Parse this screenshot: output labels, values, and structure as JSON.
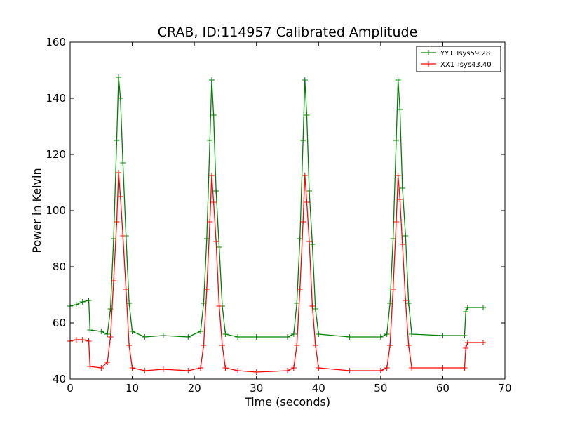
{
  "chart_data": {
    "type": "line",
    "title": "CRAB, ID:114957 Calibrated Amplitude",
    "xlabel": "Time (seconds)",
    "ylabel": "Power in Kelvin",
    "xlim": [
      0,
      70
    ],
    "ylim": [
      40,
      160
    ],
    "xticks": [
      0,
      10,
      20,
      30,
      40,
      50,
      60,
      70
    ],
    "yticks": [
      40,
      60,
      80,
      100,
      120,
      140,
      160
    ],
    "grid": false,
    "legend_position": "top-right",
    "series": [
      {
        "name": "YY1 Tsys59.28",
        "color": "#008000",
        "x": [
          0,
          1,
          2,
          3,
          3.2,
          5,
          6,
          6.5,
          7,
          7.5,
          7.8,
          8.1,
          8.5,
          9,
          9.5,
          10,
          12,
          15,
          19,
          21,
          21.5,
          22,
          22.5,
          22.8,
          23.1,
          23.5,
          24,
          24.5,
          25,
          27,
          30,
          35,
          36,
          36.5,
          37,
          37.5,
          37.8,
          38.1,
          38.5,
          39,
          39.5,
          40,
          45,
          50,
          51,
          51.5,
          52,
          52.5,
          52.8,
          53.1,
          53.5,
          54,
          54.5,
          55,
          60,
          63.5,
          63.7,
          64,
          66.5
        ],
        "y": [
          66,
          66.5,
          67.5,
          68,
          57.5,
          57,
          56,
          65,
          90,
          125,
          147.5,
          140,
          117,
          91,
          67,
          57,
          55,
          55.5,
          55,
          57,
          67,
          90,
          125,
          146.5,
          134,
          107,
          87,
          66,
          56,
          55,
          55,
          55,
          56,
          67,
          90,
          125,
          146.5,
          134,
          107,
          88,
          65,
          56,
          55,
          55,
          56,
          67,
          90,
          125,
          146.5,
          136,
          108,
          91,
          67,
          56,
          55.5,
          55.5,
          64,
          65.5,
          65.5
        ]
      },
      {
        "name": "XX1 Tsys43.40",
        "color": "#ff0000",
        "x": [
          0,
          1,
          2,
          3,
          3.2,
          5,
          6,
          6.5,
          7,
          7.5,
          7.8,
          8.1,
          8.5,
          9,
          9.5,
          10,
          12,
          15,
          19,
          21,
          21.5,
          22,
          22.5,
          22.8,
          23.1,
          23.5,
          24,
          24.5,
          25,
          27,
          30,
          35,
          36,
          36.5,
          37,
          37.5,
          37.8,
          38.1,
          38.5,
          39,
          39.5,
          40,
          45,
          50,
          51,
          51.5,
          52,
          52.5,
          52.8,
          53.1,
          53.5,
          54,
          54.5,
          55,
          60,
          63.5,
          63.7,
          64,
          66.5
        ],
        "y": [
          53.5,
          54,
          54,
          53.5,
          44.5,
          44,
          46,
          55,
          75,
          96,
          113.5,
          105,
          91,
          72,
          52,
          44,
          43,
          43.5,
          43,
          44,
          52,
          72,
          96,
          112.5,
          103,
          89,
          66,
          52,
          44,
          43,
          42.5,
          43,
          44,
          52,
          72,
          96,
          112.5,
          103,
          89,
          66,
          52,
          44,
          43,
          43,
          44,
          52,
          72,
          96,
          112.5,
          104,
          88,
          68,
          52,
          44,
          44,
          44,
          51,
          53,
          53
        ]
      }
    ]
  }
}
